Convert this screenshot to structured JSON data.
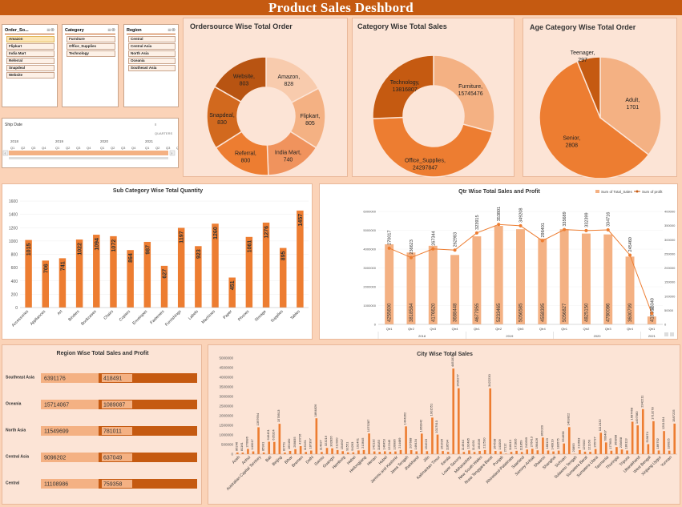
{
  "header": {
    "title": "Product Sales Deshbord"
  },
  "slicers": [
    {
      "title": "Order_So...",
      "items": [
        "Amazon",
        "Flipkart",
        "India Mart",
        "Referral",
        "Snapdeal",
        "Website"
      ]
    },
    {
      "title": "Category",
      "items": [
        "Furniture",
        "Office_Supplies",
        "Technology"
      ]
    },
    {
      "title": "Region",
      "items": [
        "Central",
        "Central Asia",
        "North Asia",
        "Oceania",
        "Southeast Asia"
      ]
    }
  ],
  "timeline": {
    "title": "Ship Date",
    "level": "QUARTERS",
    "years": [
      "2018",
      "2019",
      "2020",
      "2021"
    ],
    "quarters": [
      "Q1",
      "Q2",
      "Q3",
      "Q4"
    ]
  },
  "colors": {
    "dark": "#c55a11",
    "mid": "#ed7d31",
    "light": "#f4b183",
    "pale": "#f8cbad",
    "panel": "#fce4d6"
  },
  "chart_data": [
    {
      "id": "ordersource",
      "type": "pie",
      "title": "Ordersource Wise Total Order",
      "categories": [
        "Amazon",
        "Flipkart",
        "India Mart",
        "Referral",
        "Snapdeal",
        "Website"
      ],
      "values": [
        828,
        805,
        740,
        800,
        830,
        803
      ],
      "colors": [
        "#f8cbad",
        "#f4b183",
        "#f0935d",
        "#ed7d31",
        "#d2691e",
        "#b85412"
      ]
    },
    {
      "id": "category",
      "type": "pie",
      "title": "Category Wise Total Sales",
      "categories": [
        "Furniture",
        "Office_Supplies",
        "Technology"
      ],
      "values": [
        15745476,
        24297847,
        13816807
      ],
      "colors": [
        "#f4b183",
        "#ed7d31",
        "#c55a11"
      ]
    },
    {
      "id": "age",
      "type": "pie",
      "title": "Age Category Wise Total Order",
      "categories": [
        "Adult",
        "Senior",
        "Teenager"
      ],
      "values": [
        1701,
        2808,
        297
      ],
      "colors": [
        "#f4b183",
        "#ed7d31",
        "#c55a11"
      ]
    },
    {
      "id": "subcategory",
      "type": "bar",
      "title": "Sub Category Wise Total Quantity",
      "categories": [
        "Accessories",
        "Appliances",
        "Art",
        "Binders",
        "Bookcases",
        "Chairs",
        "Copiers",
        "Envelopes",
        "Fasteners",
        "Furnishings",
        "Labels",
        "Machines",
        "Paper",
        "Phones",
        "Storage",
        "Supplies",
        "Tables"
      ],
      "values": [
        1015,
        706,
        741,
        1022,
        1094,
        1072,
        864,
        987,
        627,
        1197,
        923,
        1260,
        451,
        1061,
        1276,
        895,
        1457
      ],
      "ylim": [
        0,
        1600
      ],
      "yticks": [
        0,
        200,
        400,
        600,
        800,
        1000,
        1200,
        1400,
        1600
      ]
    },
    {
      "id": "qtr",
      "type": "bar",
      "title": "Qtr Wise Total Sales and Profit",
      "legend": [
        "Sum of Total_Sales",
        "Sum of profit"
      ],
      "categories": [
        "Qtr1",
        "Qtr2",
        "Qtr3",
        "Qtr4",
        "Qtr1",
        "Qtr2",
        "Qtr3",
        "Qtr4",
        "Qtr1",
        "Qtr2",
        "Qtr3",
        "Qtr4",
        "Qtr1"
      ],
      "years": [
        {
          "label": "2018",
          "span": 4
        },
        {
          "label": "2019",
          "span": 4
        },
        {
          "label": "2020",
          "span": 4
        },
        {
          "label": "2021",
          "span": 1
        }
      ],
      "series": [
        {
          "name": "Sum of Total_Sales",
          "values": [
            4255600,
            3818584,
            4176620,
            3688448,
            4677955,
            5233465,
            5056585,
            4558395,
            5056827,
            4825150,
            4780086,
            3600799,
            418551
          ]
        },
        {
          "name": "Sum of profit",
          "values": [
            270017,
            236623,
            267344,
            262983,
            323915,
            353801,
            349208,
            296401,
            335689,
            332399,
            334716,
            245460,
            38340
          ]
        }
      ],
      "ylim_left": [
        0,
        6000000
      ],
      "yticks_left": [
        "0",
        "1000000",
        "2000000",
        "3000000",
        "4000000",
        "5000000",
        "6000000"
      ],
      "ylim_right": [
        0,
        400000
      ],
      "yticks_right": [
        "0",
        "50000",
        "100000",
        "150000",
        "200000",
        "250000",
        "300000",
        "350000",
        "400000"
      ]
    },
    {
      "id": "region",
      "type": "bar",
      "title": "Region Wise Total Sales and Profit",
      "categories": [
        "Southeast Asia",
        "Oceania",
        "North Asia",
        "Central Asia",
        "Central"
      ],
      "series": [
        {
          "name": "Total Sales",
          "values": [
            6391176,
            15714067,
            11549699,
            9096202,
            11108986
          ]
        },
        {
          "name": "Profit",
          "values": [
            418491,
            1089087,
            781011,
            637049,
            759358
          ]
        }
      ]
    },
    {
      "id": "city",
      "type": "bar",
      "title": "City Wise Total Sales",
      "ylim": [
        0,
        5000000
      ],
      "yticks": [
        "0",
        "500000",
        "1000000",
        "1500000",
        "2000000",
        "2500000",
        "3000000",
        "3500000",
        "4000000",
        "4500000",
        "5000000"
      ],
      "values": [
        86246,
        81161,
        270986,
        143017,
        1397694,
        85991,
        646451,
        635324,
        1578913,
        82751,
        165490,
        258835,
        416726,
        115161,
        187397,
        1864826,
        114027,
        323216,
        302826,
        212030,
        154607,
        91551,
        94263,
        191461,
        213645,
        1075287,
        142132,
        118183,
        146453,
        122345,
        139986,
        214489,
        1444362,
        207688,
        146434,
        1068942,
        154623,
        1901551,
        1017910,
        161626,
        118594,
        4451811,
        3430277,
        114944,
        192485,
        114191,
        164536,
        212530,
        3422230,
        164538,
        141009,
        27112,
        118413,
        172835,
        111859,
        240599,
        276413,
        198426,
        862020,
        188123,
        140919,
        183575,
        554658,
        1403822,
        20893,
        210683,
        129002,
        121160,
        265737,
        1112432,
        609407,
        177693,
        369898,
        239858,
        189113,
        1687468,
        1497580,
        2342211,
        519874,
        1713278,
        189792,
        1201034,
        180025,
        1587225
      ],
      "labeled_categories": [
        "Aceh",
        "Anhui",
        "Australian Capital Territory",
        "Bali",
        "Beijing",
        "Bihar",
        "Bremen",
        "Delhi",
        "Gansu",
        "Guangxi",
        "Hamburg",
        "Hebei",
        "Heilongjiang",
        "Henan",
        "Hubei",
        "Jammu and Kashmir",
        "Jawa Tengah",
        "Jharkhand",
        "Jilin",
        "Kalimantan Timur",
        "Kerala",
        "Lower Saxony",
        "Maharashtra",
        "New South Wales",
        "Nusa Tenggara Barat",
        "Punjab",
        "Rhineland-Palatinate",
        "Saarland",
        "Saxony-Anhalt",
        "Shaanxi",
        "Shanghai",
        "Sichuan",
        "Sulawesi Tengah",
        "Sumatera Barat",
        "Sumatera Utara",
        "Tasmania",
        "Thuringia",
        "Tripura",
        "Uttarakhand",
        "West Bengal",
        "Xinjiang Uygur",
        "Yunnan"
      ]
    }
  ]
}
